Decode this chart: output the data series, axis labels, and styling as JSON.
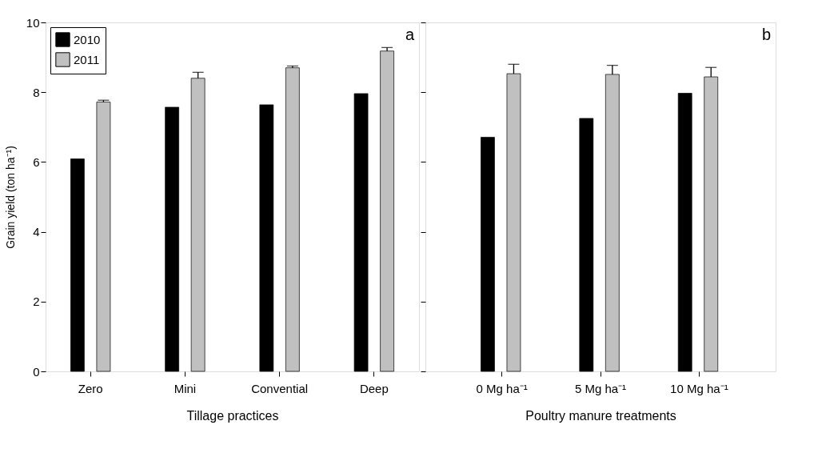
{
  "chart_data": [
    {
      "type": "bar",
      "xlabel": "Tillage practices",
      "ylabel": "Grain yield (ton ha⁻¹)",
      "categories": [
        "Zero",
        "Mini",
        "Convential",
        "Deep"
      ],
      "series": [
        {
          "name": "2010",
          "color": "#000000",
          "values": [
            6.09,
            7.57,
            7.64,
            7.96
          ]
        },
        {
          "name": "2011",
          "color": "#c0c0c0",
          "values": [
            7.72,
            8.4,
            8.7,
            9.18
          ],
          "errors": [
            0.05,
            0.17,
            0.05,
            0.1
          ]
        }
      ],
      "ylim": [
        0,
        10
      ],
      "yticks": [
        0,
        2,
        4,
        6,
        8,
        10
      ],
      "grid": false,
      "legend": "top left",
      "annotations": [
        "a"
      ]
    },
    {
      "type": "bar",
      "xlabel": "Poultry manure treatments",
      "categories": [
        "0 Mg ha⁻¹",
        "5 Mg ha⁻¹",
        "10 Mg ha⁻¹"
      ],
      "series": [
        {
          "name": "2010",
          "color": "#000000",
          "values": [
            6.71,
            7.25,
            7.97
          ]
        },
        {
          "name": "2011",
          "color": "#c0c0c0",
          "values": [
            8.53,
            8.51,
            8.44
          ],
          "errors": [
            0.27,
            0.26,
            0.27
          ]
        }
      ],
      "ylim": [
        0,
        10
      ],
      "yticks": [
        0,
        2,
        4,
        6,
        8,
        10
      ],
      "grid": false,
      "legend": false,
      "tick_labels": "x",
      "annotations": [
        "b"
      ]
    }
  ]
}
